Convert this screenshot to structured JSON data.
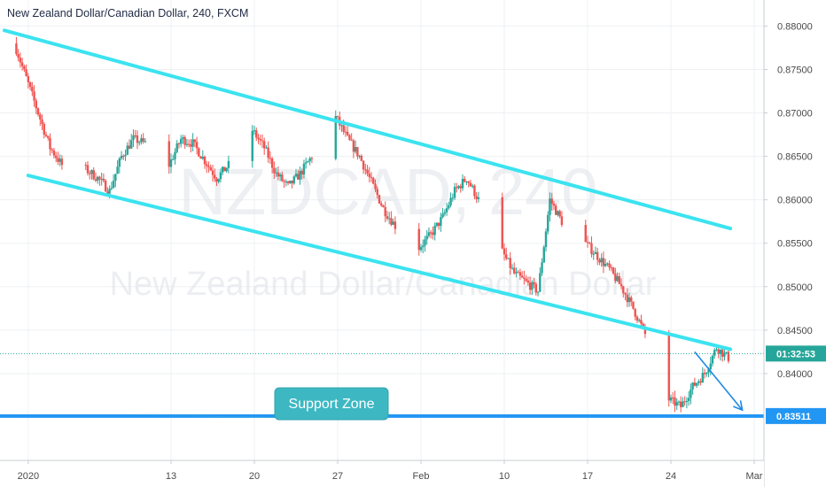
{
  "header": {
    "symbol_title": "New Zealand Dollar/Canadian Dollar, 240, FXCM"
  },
  "watermark": {
    "ticker": "NZDCAD, 240",
    "name": "New Zealand Dollar/Canadian Dollar"
  },
  "colors": {
    "bull": "#26a69a",
    "bear": "#ef5350",
    "channel": "#3be3f0",
    "support": "#2196f3",
    "callout": "#3db8c3",
    "grid": "#eef0f3"
  },
  "chart_data": {
    "type": "candlestick",
    "y_axis": {
      "ylim": [
        0.83,
        0.883
      ],
      "ticks": [
        "0.88000",
        "0.87500",
        "0.87000",
        "0.86500",
        "0.86000",
        "0.85500",
        "0.85000",
        "0.84500",
        "0.84000"
      ]
    },
    "x_axis": {
      "range": [
        "2019-12-30",
        "2020-03-02"
      ],
      "ticks": [
        {
          "date": "2020-01-01",
          "label": "2020"
        },
        {
          "date": "2020-01-13",
          "label": "13"
        },
        {
          "date": "2020-01-20",
          "label": "20"
        },
        {
          "date": "2020-01-27",
          "label": "27"
        },
        {
          "date": "2020-02-03",
          "label": "Feb"
        },
        {
          "date": "2020-02-10",
          "label": "10"
        },
        {
          "date": "2020-02-17",
          "label": "17"
        },
        {
          "date": "2020-02-24",
          "label": "24"
        },
        {
          "date": "2020-03-02",
          "label": "Mar"
        }
      ]
    },
    "price_path": [
      [
        "2019-12-31",
        0.878
      ],
      [
        "2020-01-01",
        0.874
      ],
      [
        "2020-01-02",
        0.87
      ],
      [
        "2020-01-03",
        0.866
      ],
      [
        "2020-01-04",
        0.864
      ],
      [
        "2020-01-05",
        0.865
      ],
      [
        "2020-01-06",
        0.8635
      ],
      [
        "2020-01-07",
        0.8625
      ],
      [
        "2020-01-08",
        0.861
      ],
      [
        "2020-01-09",
        0.865
      ],
      [
        "2020-01-10",
        0.867
      ],
      [
        "2020-01-11",
        0.8665
      ],
      [
        "2020-01-12",
        0.865
      ],
      [
        "2020-01-13",
        0.864
      ],
      [
        "2020-01-14",
        0.867
      ],
      [
        "2020-01-15",
        0.8665
      ],
      [
        "2020-01-16",
        0.8645
      ],
      [
        "2020-01-17",
        0.8625
      ],
      [
        "2020-01-18",
        0.864
      ],
      [
        "2020-01-19",
        0.866
      ],
      [
        "2020-01-20",
        0.868
      ],
      [
        "2020-01-21",
        0.866
      ],
      [
        "2020-01-22",
        0.863
      ],
      [
        "2020-01-23",
        0.8615
      ],
      [
        "2020-01-24",
        0.863
      ],
      [
        "2020-01-25",
        0.865
      ],
      [
        "2020-01-26",
        0.869
      ],
      [
        "2020-01-27",
        0.8695
      ],
      [
        "2020-01-28",
        0.867
      ],
      [
        "2020-01-29",
        0.865
      ],
      [
        "2020-01-30",
        0.862
      ],
      [
        "2020-01-31",
        0.859
      ],
      [
        "2020-02-01",
        0.857
      ],
      [
        "2020-02-02",
        0.855
      ],
      [
        "2020-02-03",
        0.8545
      ],
      [
        "2020-02-04",
        0.856
      ],
      [
        "2020-02-05",
        0.858
      ],
      [
        "2020-02-06",
        0.861
      ],
      [
        "2020-02-07",
        0.8625
      ],
      [
        "2020-02-08",
        0.86
      ],
      [
        "2020-02-09",
        0.8575
      ],
      [
        "2020-02-10",
        0.854
      ],
      [
        "2020-02-11",
        0.8515
      ],
      [
        "2020-02-12",
        0.8505
      ],
      [
        "2020-02-13",
        0.8495
      ],
      [
        "2020-02-14",
        0.86
      ],
      [
        "2020-02-15",
        0.8575
      ],
      [
        "2020-02-16",
        0.856
      ],
      [
        "2020-02-17",
        0.855
      ],
      [
        "2020-02-18",
        0.8535
      ],
      [
        "2020-02-19",
        0.852
      ],
      [
        "2020-02-20",
        0.85
      ],
      [
        "2020-02-21",
        0.8475
      ],
      [
        "2020-02-22",
        0.8445
      ],
      [
        "2020-02-23",
        0.841
      ],
      [
        "2020-02-24",
        0.837
      ],
      [
        "2020-02-25",
        0.8362
      ],
      [
        "2020-02-26",
        0.8385
      ],
      [
        "2020-02-27",
        0.84
      ],
      [
        "2020-02-28",
        0.843
      ],
      [
        "2020-02-29",
        0.8418
      ]
    ],
    "channel_upper": [
      [
        "2019-12-30",
        0.8795
      ],
      [
        "2020-02-29",
        0.8567
      ]
    ],
    "channel_lower": [
      [
        "2020-01-01",
        0.8628
      ],
      [
        "2020-02-29",
        0.8428
      ]
    ],
    "support_level": 0.83511,
    "last_price": 0.8423,
    "forecast_arrow": [
      [
        "2020-02-26",
        0.8425
      ],
      [
        "2020-03-01",
        0.8358
      ]
    ],
    "annotations": {
      "support_zone_label": "Support Zone",
      "countdown_label": "01:32:53",
      "support_price_label": "0.83511"
    }
  }
}
